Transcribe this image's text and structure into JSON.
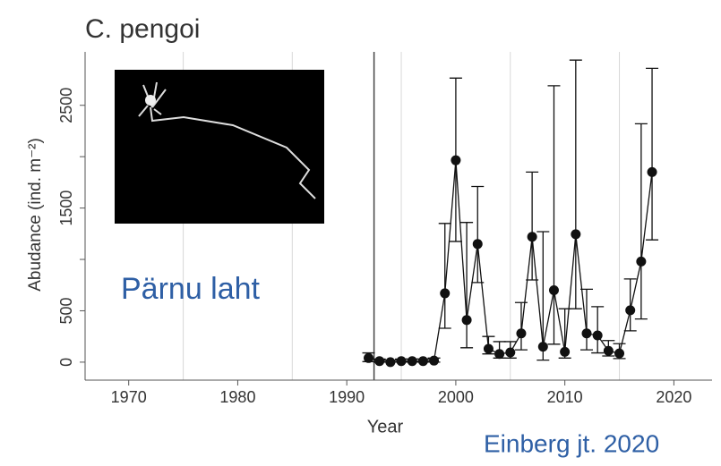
{
  "chart_data": {
    "type": "line",
    "title": "C. pengoi",
    "x_label": "Year",
    "y_label": "Abudance (ind. m⁻²)",
    "annotations": [
      "Pärnu laht",
      "Einberg jt. 2020"
    ],
    "xlim": [
      1966,
      2023.5
    ],
    "ylim": [
      -175,
      3020
    ],
    "xticks": [
      1970,
      1980,
      1990,
      2000,
      2010,
      2020
    ],
    "yticks": [
      0,
      500,
      1500,
      2500
    ],
    "yminor_ticks": [
      1000,
      2000
    ],
    "xgrid": [
      1975,
      1985,
      1995,
      2005,
      2015
    ],
    "divider": 1992.5,
    "grid": true,
    "color": "#111111",
    "x": [
      1992,
      1993,
      1994,
      1995,
      1996,
      1997,
      1998,
      1999,
      2000,
      2001,
      2002,
      2003,
      2004,
      2005,
      2006,
      2007,
      2008,
      2009,
      2010,
      2011,
      2012,
      2013,
      2014,
      2015,
      2016,
      2017,
      2018
    ],
    "values": [
      40,
      10,
      0,
      10,
      10,
      10,
      15,
      670,
      1965,
      410,
      1150,
      130,
      80,
      95,
      280,
      1220,
      150,
      700,
      100,
      1245,
      280,
      260,
      110,
      85,
      505,
      980,
      1850
    ],
    "lower": [
      5,
      0,
      0,
      0,
      0,
      0,
      0,
      330,
      1175,
      140,
      775,
      80,
      40,
      40,
      120,
      800,
      20,
      175,
      40,
      520,
      120,
      90,
      60,
      35,
      305,
      420,
      1190
    ],
    "upper": [
      90,
      30,
      20,
      30,
      30,
      30,
      40,
      1350,
      2765,
      1360,
      1710,
      250,
      200,
      200,
      580,
      1850,
      1270,
      2690,
      520,
      2940,
      710,
      540,
      210,
      180,
      810,
      2320,
      2860
    ]
  }
}
